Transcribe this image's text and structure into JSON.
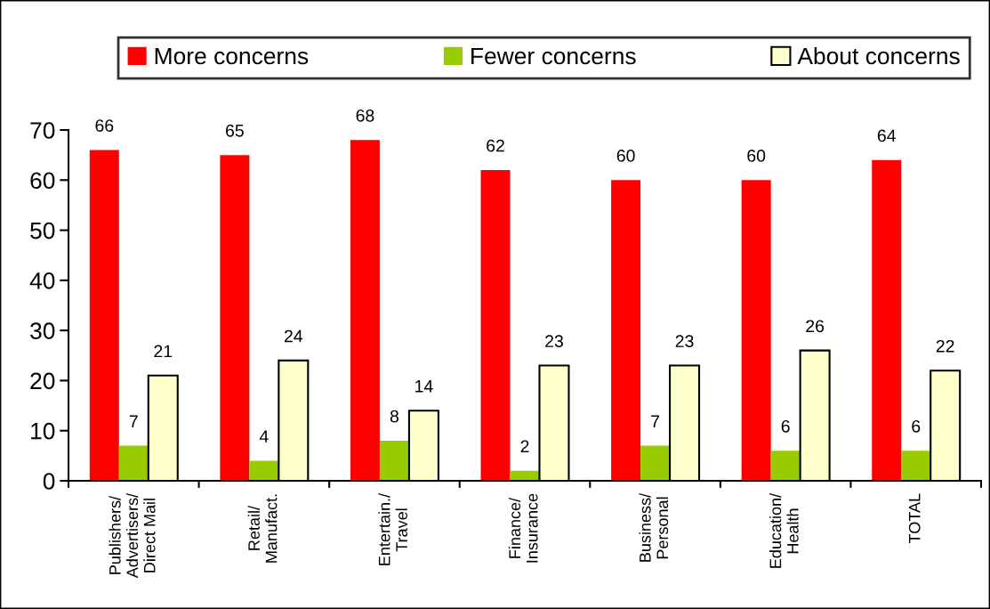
{
  "chart_data": {
    "type": "bar",
    "categories": [
      "Publishers/\nAdvertisers/\nDirect Mail",
      "Retail/\nManufact.",
      "Entertain./\nTravel",
      "Finance/\nInsurance",
      "Business/\nPersonal",
      "Education/\nHealth",
      "TOTAL"
    ],
    "series": [
      {
        "name": "More concerns",
        "color": "#ff0000",
        "values": [
          66,
          65,
          68,
          62,
          60,
          60,
          64
        ]
      },
      {
        "name": "Fewer concerns",
        "color": "#99cc00",
        "values": [
          7,
          4,
          8,
          2,
          7,
          6,
          6
        ]
      },
      {
        "name": "About concerns",
        "color": "#ffffcc",
        "values": [
          21,
          24,
          14,
          23,
          23,
          26,
          22
        ]
      }
    ],
    "ylim": [
      0,
      70
    ],
    "yticks": [
      0,
      10,
      20,
      30,
      40,
      50,
      60,
      70
    ],
    "data_labels": true,
    "legend": "top",
    "grid": false
  }
}
